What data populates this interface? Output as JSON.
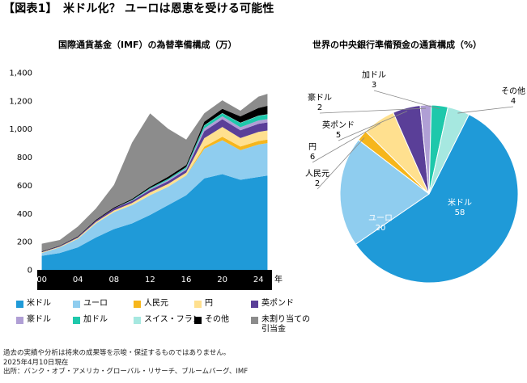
{
  "title": "【図表1】　米ドル化？ ユーロは恩恵を受ける可能性",
  "footnotes": [
    "過去の実績や分析は将来の成果等を示唆・保証するものではありません。",
    "2025年4月10日現在",
    "出所：バンク・オブ・アメリカ・グローバル・リサーチ、ブルームバーグ、IMF"
  ],
  "legend": [
    {
      "name": "米ドル",
      "color": "#1f9ad8"
    },
    {
      "name": "ユーロ",
      "color": "#8fcdef"
    },
    {
      "name": "人民元",
      "color": "#f6b61c"
    },
    {
      "name": "円",
      "color": "#ffe08f"
    },
    {
      "name": "英ポンド",
      "color": "#5a3f98"
    },
    {
      "name": "豪ドル",
      "color": "#b09fd5"
    },
    {
      "name": "加ドル",
      "color": "#1ec8ab"
    },
    {
      "name": "スイス・フラン",
      "color": "#a6e8e0"
    },
    {
      "name": "その他",
      "color": "#000000"
    },
    {
      "name": "未割り当ての\n引当金",
      "color": "#8c8c8c"
    }
  ],
  "chart_data": [
    {
      "type": "area",
      "title": "国際通貨基金（IMF）の為替準備構成（万）",
      "x_tick_labels": [
        "00",
        "04",
        "08",
        "12",
        "16",
        "20",
        "24"
      ],
      "x_unit": "年",
      "x_ticks": [
        2000,
        2004,
        2008,
        2012,
        2016,
        2020,
        2024
      ],
      "xlim": [
        1999.5,
        2025.5
      ],
      "ylim": [
        0,
        1400
      ],
      "y_ticks": [
        0,
        200,
        400,
        600,
        800,
        1000,
        1200,
        1400
      ],
      "y_tick_labels": [
        "0",
        "200",
        "400",
        "600",
        "800",
        "1,000",
        "1,200",
        "1,400"
      ],
      "stacked": true,
      "x": [
        2000,
        2002,
        2004,
        2006,
        2008,
        2010,
        2012,
        2014,
        2016,
        2018,
        2020,
        2022,
        2024,
        2025
      ],
      "series": [
        {
          "name": "米ドル",
          "color": "#1f9ad8",
          "values": [
            100,
            120,
            160,
            230,
            290,
            330,
            390,
            460,
            530,
            650,
            680,
            640,
            660,
            670
          ]
        },
        {
          "name": "ユーロ",
          "color": "#8fcdef",
          "values": [
            20,
            40,
            60,
            100,
            120,
            130,
            140,
            130,
            140,
            210,
            240,
            210,
            230,
            230
          ]
        },
        {
          "name": "人民元",
          "color": "#f6b61c",
          "values": [
            0,
            0,
            0,
            0,
            0,
            0,
            0,
            0,
            1,
            15,
            25,
            26,
            25,
            25
          ]
        },
        {
          "name": "円",
          "color": "#ffe08f",
          "values": [
            5,
            5,
            8,
            10,
            12,
            15,
            20,
            20,
            20,
            60,
            70,
            60,
            65,
            65
          ]
        },
        {
          "name": "英ポンド",
          "color": "#5a3f98",
          "values": [
            3,
            4,
            6,
            10,
            15,
            15,
            18,
            20,
            20,
            50,
            55,
            55,
            57,
            57
          ]
        },
        {
          "name": "豪ドル",
          "color": "#b09fd5",
          "values": [
            0,
            0,
            0,
            0,
            0,
            3,
            6,
            8,
            9,
            20,
            20,
            22,
            24,
            24
          ]
        },
        {
          "name": "加ドル",
          "color": "#1ec8ab",
          "values": [
            0,
            0,
            0,
            0,
            0,
            3,
            6,
            8,
            9,
            20,
            22,
            30,
            32,
            32
          ]
        },
        {
          "name": "スイス・フラン",
          "color": "#a6e8e0",
          "values": [
            0,
            0,
            0,
            0,
            0,
            0,
            1,
            1,
            1,
            2,
            2,
            2,
            2,
            2
          ]
        },
        {
          "name": "その他",
          "color": "#000000",
          "values": [
            3,
            3,
            4,
            6,
            6,
            8,
            10,
            15,
            15,
            25,
            30,
            45,
            55,
            60
          ]
        },
        {
          "name": "未割り当ての引当金",
          "color": "#8c8c8c",
          "values": [
            55,
            40,
            70,
            80,
            160,
            400,
            520,
            340,
            180,
            60,
            60,
            40,
            80,
            85
          ]
        }
      ]
    },
    {
      "type": "pie",
      "title": "世界の中央銀行準備預金の通貨構成（%）",
      "slices": [
        {
          "name": "米ドル",
          "value": 58,
          "color": "#1f9ad8"
        },
        {
          "name": "ユーロ",
          "value": 20,
          "color": "#8fcdef"
        },
        {
          "name": "人民元",
          "value": 2,
          "color": "#f6b61c"
        },
        {
          "name": "円",
          "value": 6,
          "color": "#ffe08f"
        },
        {
          "name": "英ポンド",
          "value": 5,
          "color": "#5a3f98"
        },
        {
          "name": "豪ドル",
          "value": 2,
          "color": "#b09fd5"
        },
        {
          "name": "加ドル",
          "value": 3,
          "color": "#1ec8ab"
        },
        {
          "name": "その他",
          "value": 4,
          "color": "#a6e8e0"
        }
      ]
    }
  ]
}
